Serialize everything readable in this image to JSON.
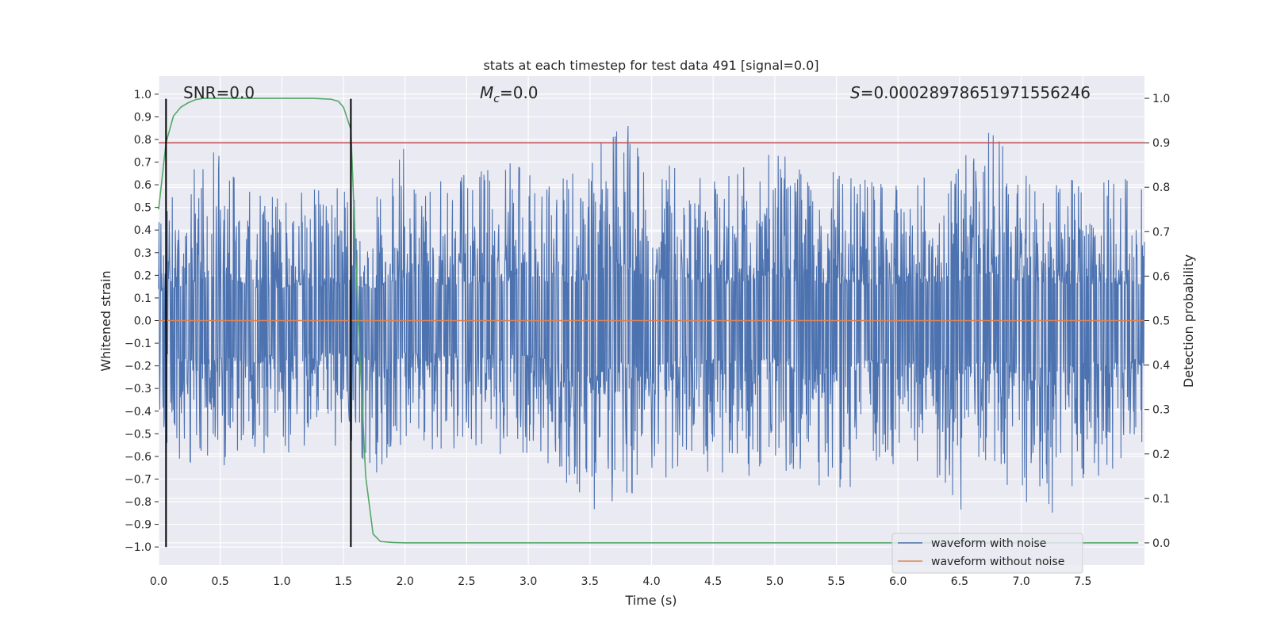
{
  "chart_data": {
    "type": "line",
    "title": "stats at each timestep for test data 491 [signal=0.0]",
    "xlabel": "Time (s)",
    "ylabel_left": "Whitened strain",
    "ylabel_right": "Detection probability",
    "xlim": [
      0.0,
      8.0
    ],
    "ylim_left": [
      -1.08,
      1.08
    ],
    "ylim_right": [
      -0.05,
      1.05
    ],
    "xticks": [
      0.0,
      0.5,
      1.0,
      1.5,
      2.0,
      2.5,
      3.0,
      3.5,
      4.0,
      4.5,
      5.0,
      5.5,
      6.0,
      6.5,
      7.0,
      7.5
    ],
    "xtick_labels": [
      "0.0",
      "0.5",
      "1.0",
      "1.5",
      "2.0",
      "2.5",
      "3.0",
      "3.5",
      "4.0",
      "4.5",
      "5.0",
      "5.5",
      "6.0",
      "6.5",
      "7.0",
      "7.5"
    ],
    "yticks_left": [
      1.0,
      0.9,
      0.8,
      0.7,
      0.6,
      0.5,
      0.4,
      0.3,
      0.2,
      0.1,
      0.0,
      -0.1,
      -0.2,
      -0.3,
      -0.4,
      -0.5,
      -0.6,
      -0.7,
      -0.8,
      -0.9,
      -1.0
    ],
    "ytick_labels_left": [
      "1.0",
      "0.9",
      "0.8",
      "0.7",
      "0.6",
      "0.5",
      "0.4",
      "0.3",
      "0.2",
      "0.1",
      "0.0",
      "−0.1",
      "−0.2",
      "−0.3",
      "−0.4",
      "−0.5",
      "−0.6",
      "−0.7",
      "−0.8",
      "−0.9",
      "−1.0"
    ],
    "yticks_right": [
      1.0,
      0.9,
      0.8,
      0.7,
      0.6,
      0.5,
      0.4,
      0.3,
      0.2,
      0.1,
      0.0
    ],
    "ytick_labels_right": [
      "1.0",
      "0.9",
      "0.8",
      "0.7",
      "0.6",
      "0.5",
      "0.4",
      "0.3",
      "0.2",
      "0.1",
      "0.0"
    ],
    "grid": true,
    "legend_position": "bottom-right",
    "annotations": {
      "snr": "SNR=0.0",
      "mc_symbol": "M",
      "mc_sub": "c",
      "mc_value": "=0.0",
      "s_symbol": "S",
      "s_value": "=0.00028978651971556246"
    },
    "series": [
      {
        "name": "waveform with noise",
        "color": "#4c72b0",
        "axis": "left",
        "note_shape": "dense noise envelope",
        "envelope_x": [
          0.0,
          0.25,
          0.5,
          0.75,
          1.0,
          1.25,
          1.5,
          1.75,
          2.0,
          2.25,
          2.5,
          2.75,
          3.0,
          3.25,
          3.5,
          3.75,
          4.0,
          4.25,
          4.5,
          4.75,
          5.0,
          5.25,
          5.5,
          5.75,
          6.0,
          6.25,
          6.5,
          6.75,
          7.0,
          7.25,
          7.5,
          7.75,
          8.0
        ],
        "envelope_upper": [
          0.48,
          0.66,
          0.82,
          0.57,
          0.58,
          0.6,
          0.62,
          0.57,
          0.77,
          0.62,
          0.65,
          0.68,
          0.74,
          0.66,
          0.7,
          0.97,
          0.72,
          0.68,
          0.62,
          0.69,
          0.82,
          0.63,
          0.66,
          0.63,
          0.64,
          0.68,
          0.7,
          0.85,
          0.69,
          0.66,
          0.64,
          0.64,
          0.63
        ],
        "envelope_lower": [
          -0.55,
          -0.7,
          -0.67,
          -0.6,
          -0.61,
          -0.58,
          -0.56,
          -0.69,
          -0.56,
          -0.58,
          -0.58,
          -0.6,
          -0.6,
          -0.74,
          -1.0,
          -0.74,
          -0.84,
          -0.62,
          -0.68,
          -0.7,
          -0.66,
          -0.69,
          -0.82,
          -0.7,
          -0.66,
          -0.72,
          -0.85,
          -0.67,
          -0.8,
          -0.85,
          -0.72,
          -0.75,
          -0.65
        ]
      },
      {
        "name": "waveform without noise",
        "color": "#dd8452",
        "axis": "left",
        "x": [
          0.0,
          8.0
        ],
        "y": [
          0.0,
          0.0
        ]
      },
      {
        "name": "",
        "color": "#55a868",
        "axis": "right",
        "x": [
          0.0,
          0.06,
          0.12,
          0.18,
          0.24,
          0.3,
          0.36,
          0.5,
          0.75,
          1.0,
          1.25,
          1.4,
          1.46,
          1.5,
          1.56,
          1.62,
          1.68,
          1.74,
          1.8,
          1.9,
          2.0,
          3.0,
          4.0,
          5.0,
          6.0,
          7.0,
          7.95
        ],
        "y": [
          0.75,
          0.9,
          0.96,
          0.98,
          0.99,
          0.997,
          1.0,
          1.0,
          1.0,
          1.0,
          1.0,
          0.998,
          0.993,
          0.98,
          0.93,
          0.5,
          0.15,
          0.02,
          0.003,
          0.001,
          0.0,
          0.0,
          0.0,
          0.0,
          0.0,
          0.0,
          0.0
        ]
      }
    ],
    "threshold_line": {
      "color": "#c44e52",
      "axis": "right",
      "y": 0.9
    },
    "vertical_markers": {
      "color": "#000000",
      "x": [
        0.06,
        1.56
      ],
      "y_range_left": [
        -1.0,
        0.98
      ]
    }
  }
}
